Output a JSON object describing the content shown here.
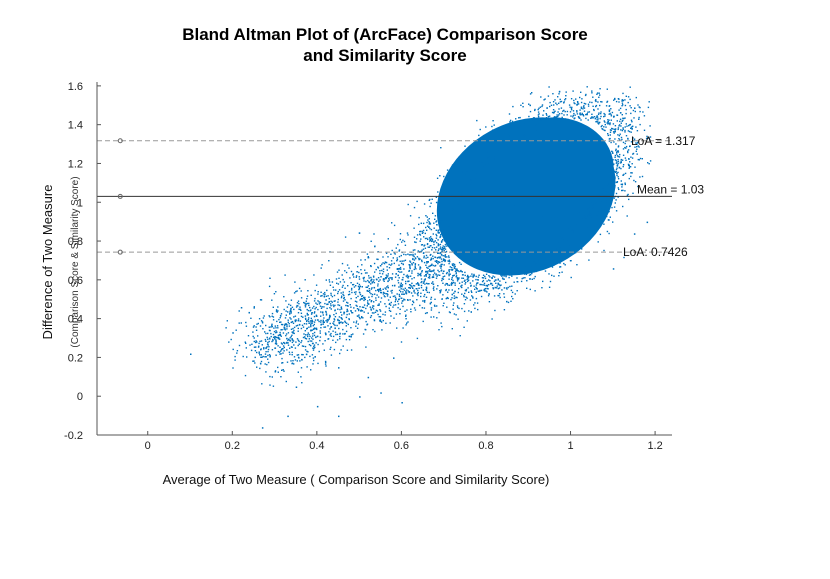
{
  "chart_data": {
    "type": "scatter",
    "title_line1": "Bland Altman Plot of (ArcFace) Comparison Score",
    "title_line2": "and Similarity Score",
    "xlabel": "Average of Two Measure ( Comparison Score and Similarity Score)",
    "ylabel_main": "Difference of Two Measure",
    "ylabel_sub": "(Comparison Score & Similarity Score)",
    "xlim": [
      -0.12,
      1.24
    ],
    "ylim": [
      -0.2,
      1.62
    ],
    "x_ticks": [
      0,
      0.2,
      0.4,
      0.6,
      0.8,
      1,
      1.2
    ],
    "x_tick_labels": [
      "0",
      "0.2",
      "0.4",
      "0.6",
      "0.8",
      "1",
      "1.2"
    ],
    "y_ticks": [
      -0.2,
      0,
      0.2,
      0.4,
      0.6,
      0.8,
      1,
      1.2,
      1.4,
      1.6
    ],
    "y_tick_labels": [
      "-0.2",
      "0",
      "0.2",
      "0.4",
      "0.6",
      "0.8",
      "1",
      "1.2",
      "1.4",
      "1.6"
    ],
    "grid": false,
    "point_color": "#0072bd",
    "mean_line_color": "#333333",
    "loa_line_color": "#999999",
    "reference_lines": [
      {
        "name": "upper-loa",
        "y": 1.317,
        "label": "LoA = 1.317",
        "style": "dashed"
      },
      {
        "name": "mean",
        "y": 1.03,
        "label": "Mean = 1.03",
        "style": "solid"
      },
      {
        "name": "lower-loa",
        "y": 0.7426,
        "label": "LoA: 0.7426",
        "style": "dashed"
      }
    ],
    "series": [
      {
        "points_description_x_range": [
          0.2,
          1.2
        ],
        "dense_core_center": [
          0.9,
          1.03
        ],
        "sparse_points": [
          [
            0.1,
            0.22
          ],
          [
            0.2,
            0.33
          ],
          [
            0.22,
            0.46
          ],
          [
            0.27,
            -0.16
          ],
          [
            0.3,
            0.13
          ],
          [
            0.33,
            -0.1
          ],
          [
            0.35,
            0.05
          ],
          [
            0.4,
            -0.05
          ],
          [
            0.45,
            -0.1
          ],
          [
            0.5,
            0.0
          ],
          [
            0.55,
            0.02
          ],
          [
            0.6,
            -0.03
          ],
          [
            0.65,
            0.55
          ],
          [
            0.45,
            0.15
          ],
          [
            0.32,
            0.28
          ],
          [
            0.38,
            0.38
          ],
          [
            0.48,
            0.32
          ],
          [
            0.52,
            0.1
          ],
          [
            0.58,
            0.2
          ],
          [
            0.42,
            0.5
          ],
          [
            0.55,
            0.62
          ],
          [
            0.6,
            0.7
          ],
          [
            1.1,
            0.66
          ],
          [
            1.15,
            0.84
          ],
          [
            1.18,
            0.9
          ]
        ]
      }
    ]
  }
}
